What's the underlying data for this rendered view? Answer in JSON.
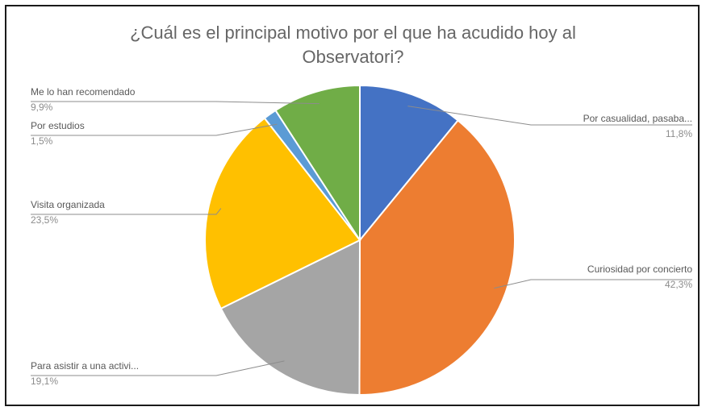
{
  "chart_data": {
    "type": "pie",
    "title_line1": "¿Cuál es el principal motivo por el que ha acudido hoy al",
    "title_line2": "Observatori?",
    "slices": [
      {
        "label": "Por casualidad, pasaba...",
        "percent": "11,8%",
        "value": 11.8,
        "color": "#4472C4"
      },
      {
        "label": "Curiosidad por concierto",
        "percent": "42,3%",
        "value": 42.3,
        "color": "#ED7D31"
      },
      {
        "label": "Para asistir a una activi...",
        "percent": "19,1%",
        "value": 19.1,
        "color": "#A5A5A5"
      },
      {
        "label": "Visita organizada",
        "percent": "23,5%",
        "value": 23.5,
        "color": "#FFC000"
      },
      {
        "label": "Por estudios",
        "percent": "1,5%",
        "value": 1.5,
        "color": "#5B9BD5"
      },
      {
        "label": "Me lo han recomendado",
        "percent": "9,9%",
        "value": 9.9,
        "color": "#70AD47"
      }
    ]
  }
}
